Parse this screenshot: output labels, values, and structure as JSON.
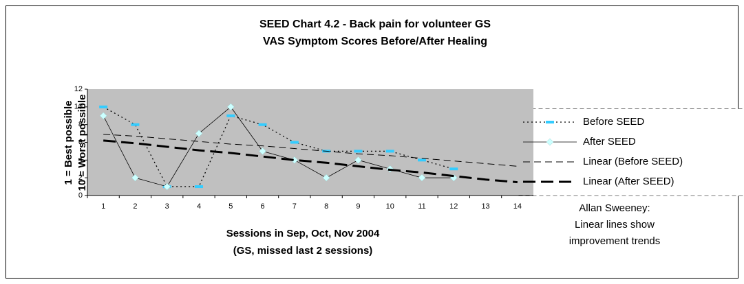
{
  "chart_data": {
    "type": "line",
    "title": [
      "SEED Chart 4.2 - Back pain for volunteer GS",
      "VAS Symptom Scores Before/After Healing"
    ],
    "y_label": [
      "1 = Best possible",
      "10 = Worst possible"
    ],
    "x_label": [
      "Sessions in Sep, Oct, Nov 2004",
      "(GS, missed last 2 sessions)"
    ],
    "categories": [
      "1",
      "2",
      "3",
      "4",
      "5",
      "6",
      "7",
      "8",
      "9",
      "10",
      "11",
      "12",
      "13",
      "14"
    ],
    "ylim": [
      0,
      12
    ],
    "yticks": [
      0,
      2,
      4,
      6,
      8,
      10,
      12
    ],
    "grid": false,
    "plot_background": "#c0c0c0",
    "legend_position": "right",
    "series": [
      {
        "name": "Before SEED",
        "color": "#33ccff",
        "line_color": "#000000",
        "line_style": "dotted",
        "line_width": 1.3,
        "marker": "dash",
        "values": [
          10,
          8,
          1,
          1,
          9,
          8,
          6,
          5,
          5,
          5,
          4,
          3,
          null,
          null
        ]
      },
      {
        "name": "After SEED",
        "color": "#ccffff",
        "line_color": "#000000",
        "line_style": "solid",
        "line_width": 0.8,
        "marker": "diamond",
        "values": [
          9,
          2,
          1,
          7,
          10,
          5,
          4,
          2,
          4,
          3,
          2,
          2,
          null,
          null
        ]
      },
      {
        "name": "Linear (Before SEED)",
        "color": "#000000",
        "line_color": "#000000",
        "line_style": "dashed",
        "line_width": 1,
        "marker": "none",
        "values": [
          6.9,
          6.7,
          6.4,
          6.1,
          5.8,
          5.6,
          5.3,
          5.0,
          4.7,
          4.5,
          4.2,
          3.9,
          3.6,
          3.3
        ]
      },
      {
        "name": "Linear (After SEED)",
        "color": "#000000",
        "line_color": "#000000",
        "line_style": "longdash",
        "line_width": 3,
        "marker": "none",
        "values": [
          6.2,
          5.9,
          5.5,
          5.1,
          4.8,
          4.4,
          4.0,
          3.7,
          3.3,
          2.9,
          2.6,
          2.2,
          1.8,
          1.5
        ]
      }
    ],
    "annotation": [
      "Allan Sweeney:",
      "Linear lines show",
      "improvement trends"
    ]
  }
}
